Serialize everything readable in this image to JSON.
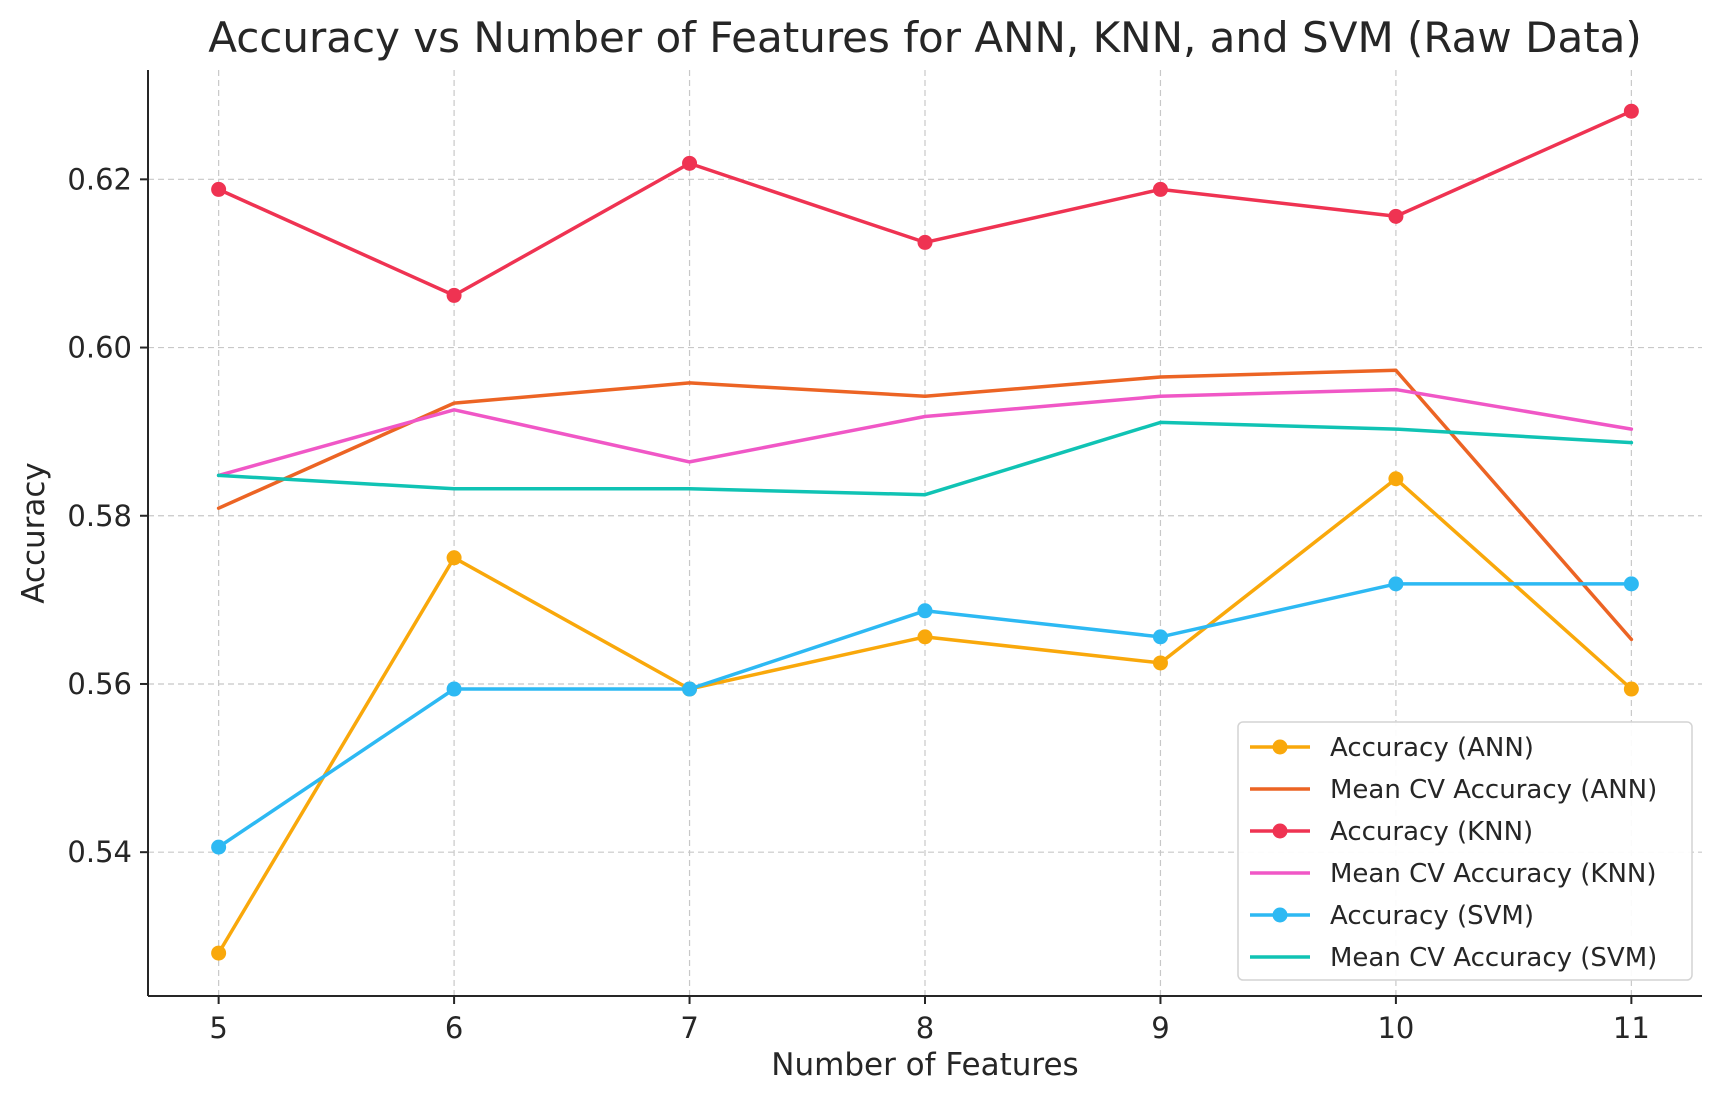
{
  "chart_data": {
    "type": "line",
    "title": "Accuracy vs Number of Features for ANN, KNN, and SVM (Raw Data)",
    "xlabel": "Number of Features",
    "ylabel": "Accuracy",
    "x": [
      5,
      6,
      7,
      8,
      9,
      10,
      11
    ],
    "xlim": [
      4.7,
      11.3
    ],
    "ylim": [
      0.5229,
      0.633
    ],
    "xticks": [
      "5",
      "6",
      "7",
      "8",
      "9",
      "10",
      "11"
    ],
    "yticks": [
      "0.54",
      "0.56",
      "0.58",
      "0.60",
      "0.62"
    ],
    "ytick_values": [
      0.54,
      0.56,
      0.58,
      0.6,
      0.62
    ],
    "grid": true,
    "legend_position": "bottom-right",
    "series": [
      {
        "name": "Accuracy (ANN)",
        "color": "#F9A80B",
        "markers": true,
        "values": [
          0.528,
          0.575,
          0.5594,
          0.5656,
          0.5625,
          0.5844,
          0.5594
        ]
      },
      {
        "name": "Mean CV Accuracy (ANN)",
        "color": "#EC6424",
        "markers": false,
        "values": [
          0.5809,
          0.5934,
          0.5958,
          0.5942,
          0.5965,
          0.5973,
          0.5653
        ]
      },
      {
        "name": "Accuracy (KNN)",
        "color": "#EF3352",
        "markers": true,
        "values": [
          0.6188,
          0.6062,
          0.6219,
          0.6125,
          0.6188,
          0.6156,
          0.6281
        ]
      },
      {
        "name": "Mean CV Accuracy (KNN)",
        "color": "#F057C6",
        "markers": false,
        "values": [
          0.5848,
          0.5926,
          0.5864,
          0.5918,
          0.5942,
          0.595,
          0.5903
        ]
      },
      {
        "name": "Accuracy (SVM)",
        "color": "#2DB9F3",
        "markers": true,
        "values": [
          0.5406,
          0.5594,
          0.5594,
          0.5687,
          0.5656,
          0.5719,
          0.5719
        ]
      },
      {
        "name": "Mean CV Accuracy (SVM)",
        "color": "#10C3B4",
        "markers": false,
        "values": [
          0.5848,
          0.5832,
          0.5832,
          0.5825,
          0.5911,
          0.5903,
          0.5887
        ]
      }
    ]
  }
}
